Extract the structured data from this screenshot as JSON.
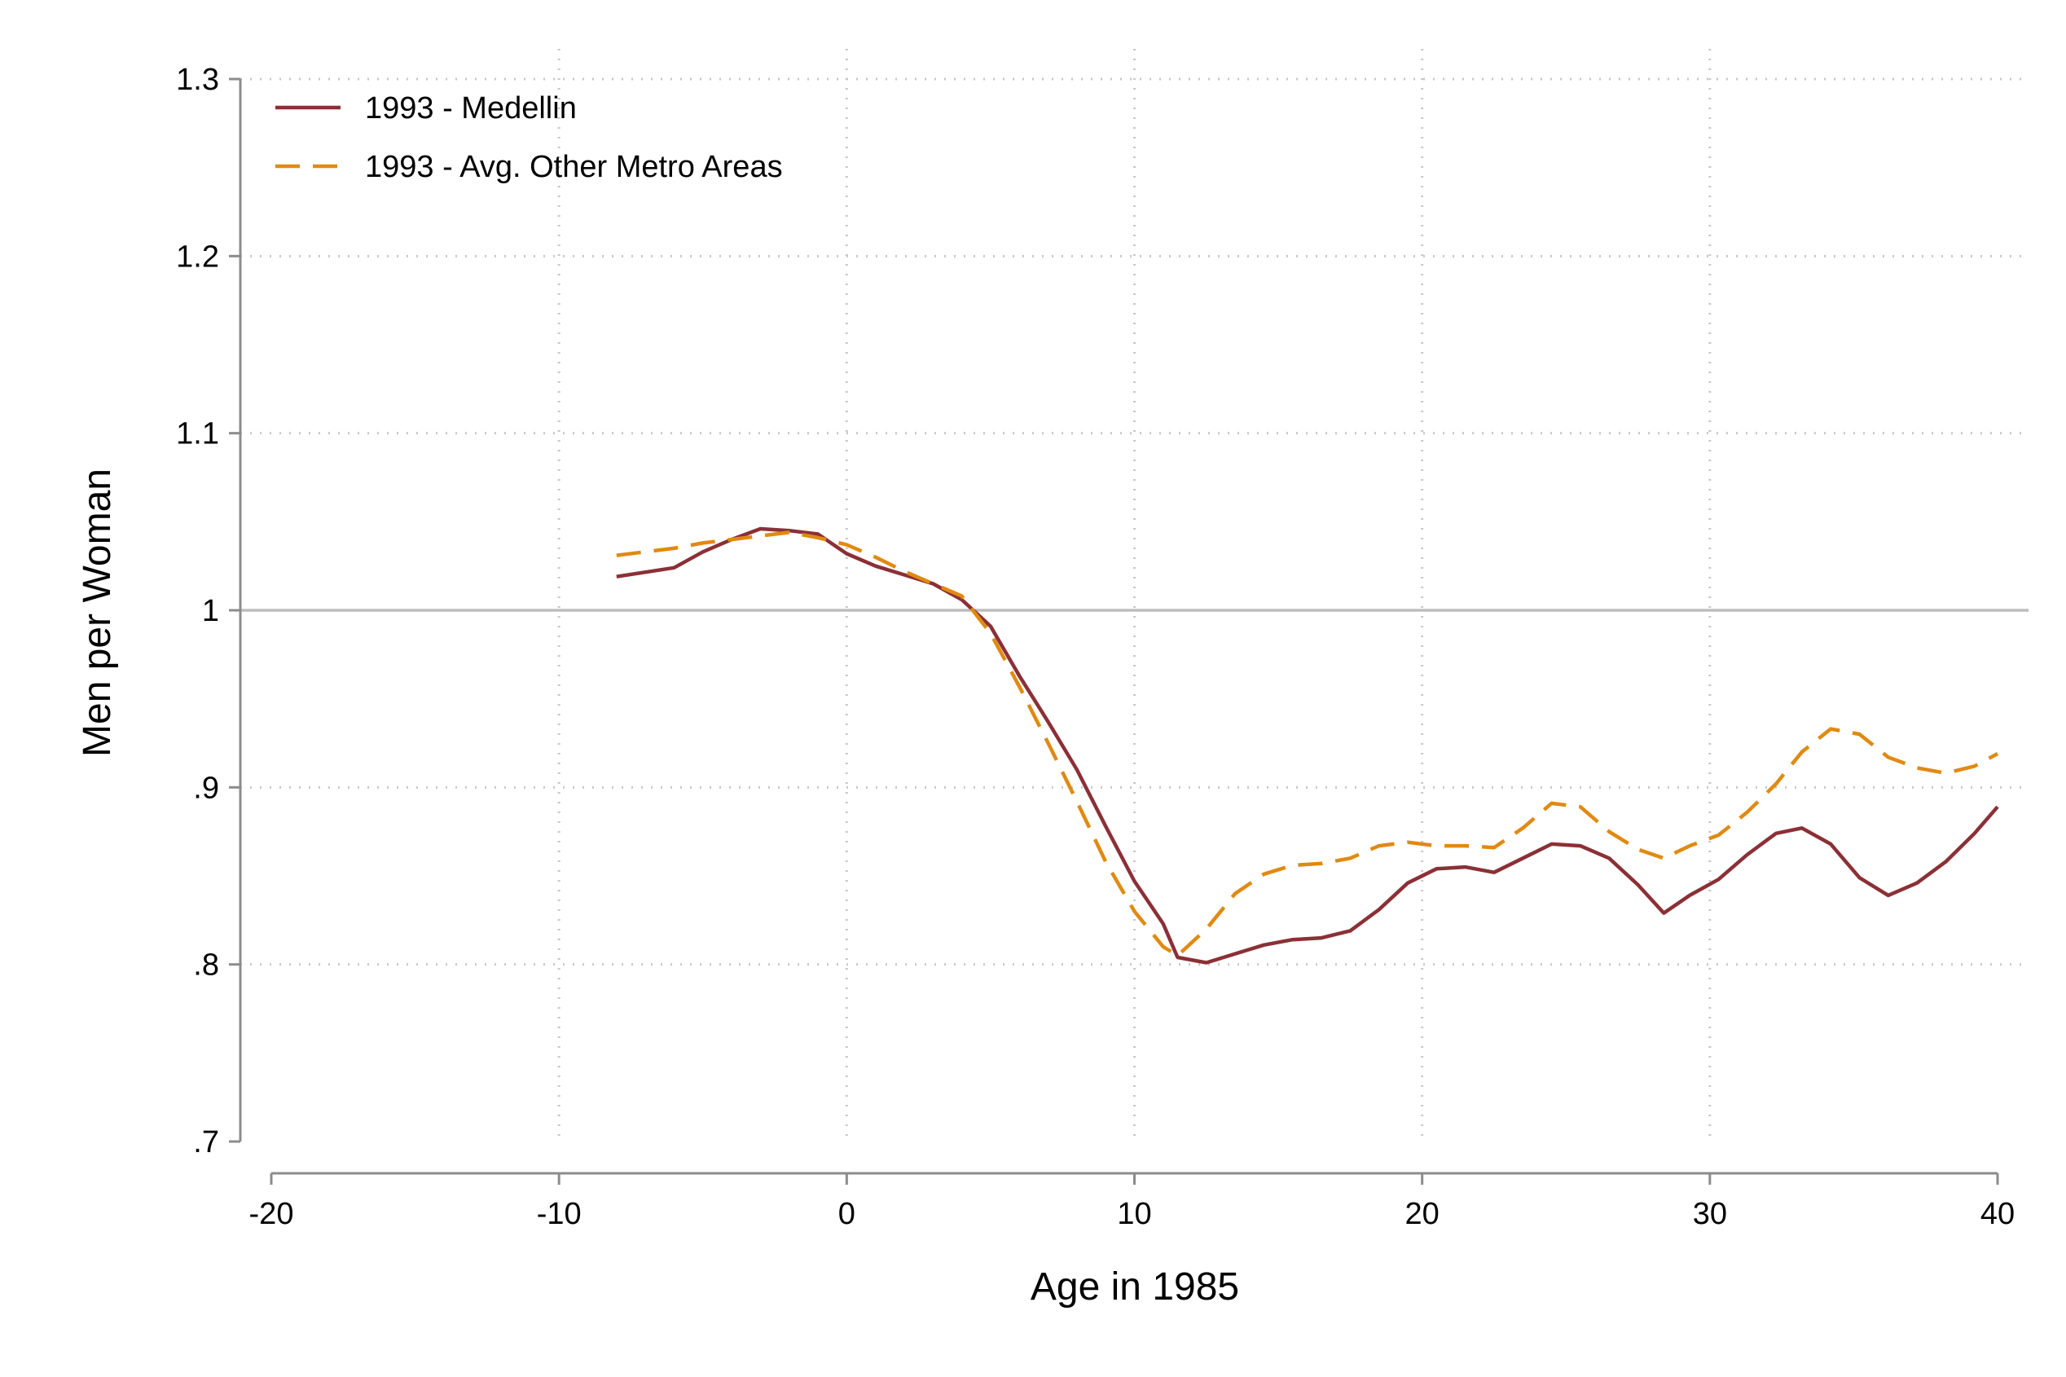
{
  "chart_data": {
    "type": "line",
    "title": "",
    "xlabel": "Age in 1985",
    "ylabel": "Men per Woman",
    "xlim": [
      -20,
      40
    ],
    "ylim": [
      0.7,
      1.3
    ],
    "x_ticks": [
      -20,
      -10,
      0,
      10,
      20,
      30,
      40
    ],
    "x_tick_labels": [
      "-20",
      "-10",
      "0",
      "10",
      "20",
      "30",
      "40"
    ],
    "y_ticks": [
      0.7,
      0.8,
      0.9,
      1.0,
      1.1,
      1.2,
      1.3
    ],
    "y_tick_labels": [
      ".7",
      ".8",
      ".9",
      "1",
      "1.1",
      "1.2",
      "1.3"
    ],
    "reference_line": 1.0,
    "grid": true,
    "legend_position": "top-left",
    "series": [
      {
        "name": "1993 - Medellin",
        "color": "#8b3036",
        "style": "solid",
        "x": [
          -8,
          -6,
          -5,
          -4,
          -3,
          -2,
          -1,
          0,
          1,
          2,
          3,
          4,
          5,
          6,
          7,
          8,
          9,
          10,
          11,
          11.5,
          12.5,
          13.5,
          14.5,
          15.5,
          16.5,
          17.5,
          18.5,
          19.5,
          20.5,
          21.5,
          22.5,
          23.5,
          24.5,
          25.5,
          26.5,
          27.5,
          28.4,
          29.3,
          30.3,
          31.3,
          32.3,
          33.2,
          34.2,
          35.2,
          36.2,
          37.2,
          38.2,
          39.2,
          40
        ],
        "y": [
          1.019,
          1.024,
          1.033,
          1.04,
          1.046,
          1.045,
          1.043,
          1.032,
          1.025,
          1.02,
          1.015,
          1.006,
          0.991,
          0.963,
          0.937,
          0.91,
          0.878,
          0.847,
          0.823,
          0.804,
          0.801,
          0.806,
          0.811,
          0.814,
          0.815,
          0.819,
          0.831,
          0.846,
          0.854,
          0.855,
          0.852,
          0.86,
          0.868,
          0.867,
          0.86,
          0.845,
          0.829,
          0.839,
          0.848,
          0.862,
          0.874,
          0.877,
          0.868,
          0.849,
          0.839,
          0.846,
          0.858,
          0.874,
          0.889
        ]
      },
      {
        "name": "1993 - Avg. Other Metro Areas",
        "color": "#e08a12",
        "style": "dashed",
        "x": [
          -8,
          -6,
          -5,
          -4,
          -3,
          -2,
          -1,
          0,
          1,
          2,
          3,
          4,
          5,
          6,
          7,
          8,
          9,
          10,
          11,
          11.5,
          12.5,
          13.5,
          14.5,
          15.5,
          16.5,
          17.5,
          18.5,
          19.5,
          20.5,
          21.5,
          22.5,
          23.5,
          24.5,
          25.5,
          26.5,
          27.5,
          28.4,
          29.3,
          30.3,
          31.3,
          32.3,
          33.2,
          34.2,
          35.2,
          36.2,
          37.2,
          38.2,
          39.2,
          40
        ],
        "y": [
          1.031,
          1.035,
          1.038,
          1.04,
          1.042,
          1.044,
          1.041,
          1.037,
          1.03,
          1.022,
          1.015,
          1.008,
          0.987,
          0.957,
          0.925,
          0.892,
          0.858,
          0.83,
          0.81,
          0.805,
          0.82,
          0.84,
          0.851,
          0.856,
          0.857,
          0.86,
          0.867,
          0.869,
          0.867,
          0.867,
          0.866,
          0.877,
          0.891,
          0.889,
          0.875,
          0.865,
          0.86,
          0.867,
          0.873,
          0.886,
          0.902,
          0.92,
          0.933,
          0.93,
          0.917,
          0.911,
          0.908,
          0.912,
          0.919
        ]
      }
    ]
  }
}
